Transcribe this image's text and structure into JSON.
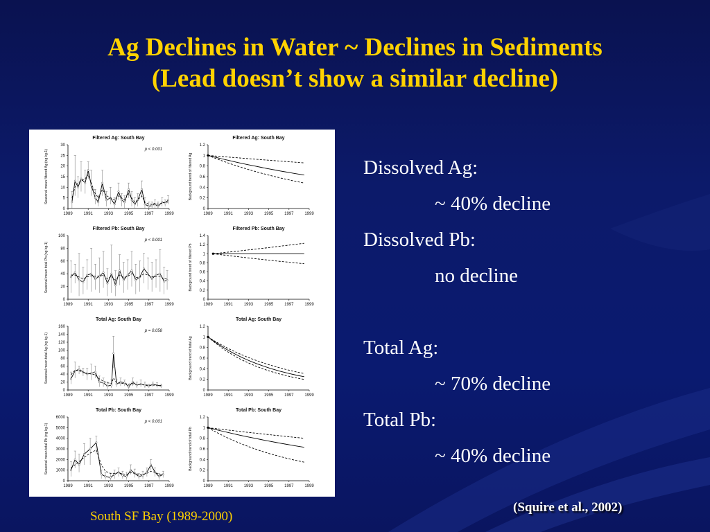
{
  "slide": {
    "title_line1": "Ag Declines in Water ~ Declines in Sediments",
    "title_line2": "(Lead doesn’t show a similar decline)",
    "caption": "South SF Bay (1989-2000)",
    "citation": "(Squire et al., 2002)"
  },
  "bullets": [
    {
      "text": "Dissolved Ag:",
      "indent": false
    },
    {
      "text": "~ 40% decline",
      "indent": true
    },
    {
      "text": "Dissolved Pb:",
      "indent": false
    },
    {
      "text": "no decline",
      "indent": true
    },
    {
      "text": "",
      "indent": false
    },
    {
      "text": "Total Ag:",
      "indent": false
    },
    {
      "text": "~ 70% decline",
      "indent": true
    },
    {
      "text": "Total Pb:",
      "indent": false
    },
    {
      "text": "~ 40% decline",
      "indent": true
    }
  ],
  "colors": {
    "title": "#ffd200",
    "background": "#0c1a6a",
    "text": "#ffffff",
    "figure_bg": "#ffffff"
  },
  "chart_data": [
    {
      "type": "line",
      "title": "Filtered Ag: South Bay",
      "annotation": "p < 0.001",
      "ylabel": "Seasonal mean filtered Ag (ng kg-1)",
      "x_ticks": [
        "1989",
        "1991",
        "1993",
        "1995",
        "1997",
        "1999"
      ],
      "xlim": [
        1989,
        1999
      ],
      "y_ticks": [
        "0",
        "5",
        "10",
        "15",
        "20",
        "25",
        "30"
      ],
      "ylim": [
        0,
        30
      ],
      "x": [
        1989.4,
        1989.7,
        1990.0,
        1990.3,
        1990.7,
        1991.0,
        1991.3,
        1991.7,
        1992.0,
        1992.4,
        1992.8,
        1993.2,
        1993.6,
        1994.0,
        1994.3,
        1994.6,
        1995.0,
        1995.3,
        1995.6,
        1995.9,
        1996.3,
        1996.6,
        1997.0,
        1997.3,
        1997.6,
        1997.9,
        1998.3,
        1998.6,
        1998.9
      ],
      "series": [
        {
          "values": [
            3,
            13,
            10,
            14,
            12,
            18,
            11,
            5,
            3,
            12,
            4,
            5,
            2,
            8,
            4,
            3,
            9,
            4,
            2,
            4,
            9,
            2,
            1,
            1.5,
            2,
            1,
            3,
            2.5,
            4
          ]
        },
        {
          "values": [
            5,
            10,
            12,
            13,
            14,
            16,
            12,
            7,
            5,
            9,
            6,
            5,
            4,
            6,
            5,
            4,
            7,
            5,
            3,
            4,
            6,
            3,
            2,
            2,
            2.5,
            2,
            2.5,
            3,
            3
          ]
        }
      ],
      "error_upper": [
        8,
        25,
        15,
        22,
        18,
        22,
        18,
        9,
        6,
        18,
        8,
        10,
        5,
        12,
        7,
        6,
        12,
        8,
        5,
        7,
        13,
        5,
        3,
        3,
        4,
        3,
        5,
        4,
        6
      ],
      "error_lower": [
        0,
        6,
        5,
        8,
        7,
        14,
        6,
        2,
        1,
        6,
        1,
        2,
        0,
        4,
        1,
        0,
        5,
        1,
        0,
        1,
        5,
        0,
        0,
        0,
        0,
        0,
        1,
        1,
        2
      ]
    },
    {
      "type": "line",
      "title": "Filtered Ag: South Bay",
      "ylabel": "Background trend of filtered Ag",
      "x_ticks": [
        "1989",
        "1991",
        "1993",
        "1995",
        "1997",
        "1999"
      ],
      "xlim": [
        1989,
        1999
      ],
      "y_ticks": [
        "0",
        "0.2",
        "0.4",
        "0.6",
        "0.8",
        "1",
        "1.2"
      ],
      "ylim": [
        0,
        1.2
      ],
      "trend": {
        "start": 1989,
        "end": 1998.5,
        "mid": 0.63,
        "upper": 0.86,
        "lower": 0.48
      }
    },
    {
      "type": "line",
      "title": "Filtered Pb: South Bay",
      "annotation": "p < 0.001",
      "ylabel": "Seasonal mean total Pb (ng kg-1)",
      "x_ticks": [
        "1989",
        "1991",
        "1993",
        "1995",
        "1997",
        "1999"
      ],
      "xlim": [
        1989,
        1999
      ],
      "y_ticks": [
        "0",
        "20",
        "40",
        "60",
        "80",
        "100"
      ],
      "ylim": [
        0,
        100
      ],
      "x": [
        1989.3,
        1989.7,
        1990.1,
        1990.5,
        1990.9,
        1991.3,
        1991.7,
        1992.1,
        1992.5,
        1992.9,
        1993.3,
        1993.7,
        1994.1,
        1994.5,
        1994.9,
        1995.3,
        1995.7,
        1996.1,
        1996.5,
        1996.9,
        1997.3,
        1997.7,
        1998.1,
        1998.5,
        1998.8
      ],
      "series": [
        {
          "values": [
            35,
            42,
            30,
            27,
            38,
            40,
            32,
            36,
            42,
            25,
            40,
            22,
            45,
            30,
            38,
            45,
            30,
            35,
            48,
            40,
            32,
            38,
            40,
            28,
            30
          ]
        },
        {
          "values": [
            38,
            38,
            35,
            32,
            35,
            37,
            36,
            36,
            38,
            32,
            36,
            30,
            38,
            34,
            36,
            40,
            34,
            35,
            40,
            38,
            35,
            36,
            36,
            32,
            32
          ]
        }
      ],
      "error_upper": [
        60,
        55,
        72,
        50,
        62,
        80,
        55,
        65,
        75,
        48,
        85,
        45,
        70,
        58,
        62,
        75,
        55,
        60,
        72,
        65,
        58,
        62,
        78,
        50,
        45
      ],
      "error_lower": [
        10,
        25,
        5,
        8,
        15,
        12,
        15,
        10,
        18,
        5,
        10,
        5,
        22,
        10,
        15,
        20,
        8,
        12,
        25,
        15,
        12,
        18,
        12,
        8,
        15
      ]
    },
    {
      "type": "line",
      "title": "Filtered Pb: South Bay",
      "ylabel": "Background trend of filtered Pb",
      "x_ticks": [
        "1989",
        "1991",
        "1993",
        "1995",
        "1997",
        "1999"
      ],
      "xlim": [
        1989,
        1999
      ],
      "y_ticks": [
        "0",
        "0.2",
        "0.4",
        "0.6",
        "0.8",
        "1",
        "1.2",
        "1.4"
      ],
      "ylim": [
        0,
        1.4
      ],
      "trend": {
        "start": 1989.5,
        "end": 1998.5,
        "mid": 1.0,
        "upper": 1.23,
        "lower": 0.78
      }
    },
    {
      "type": "line",
      "title": "Total Ag: South Bay",
      "annotation": "p = 0.058",
      "ylabel": "Seasonal mean total Ag (ng kg-1)",
      "x_ticks": [
        "1989",
        "1991",
        "1993",
        "1995",
        "1997",
        "1999"
      ],
      "xlim": [
        1989,
        1999
      ],
      "y_ticks": [
        "0",
        "20",
        "40",
        "60",
        "80",
        "100",
        "120",
        "140",
        "160"
      ],
      "ylim": [
        0,
        160
      ],
      "x": [
        1989.3,
        1989.7,
        1990.1,
        1990.5,
        1990.9,
        1991.3,
        1991.7,
        1992.1,
        1992.5,
        1992.9,
        1993.3,
        1993.5,
        1993.8,
        1994.2,
        1994.6,
        1995.0,
        1995.4,
        1995.8,
        1996.2,
        1996.6,
        1997.0,
        1997.4,
        1997.8,
        1998.2
      ],
      "series": [
        {
          "values": [
            28,
            48,
            52,
            45,
            40,
            42,
            45,
            20,
            18,
            10,
            12,
            92,
            15,
            20,
            18,
            8,
            20,
            12,
            15,
            12,
            10,
            14,
            12,
            10
          ]
        },
        {
          "values": [
            38,
            50,
            48,
            45,
            42,
            40,
            38,
            28,
            22,
            18,
            16,
            30,
            18,
            17,
            16,
            15,
            16,
            14,
            14,
            13,
            12,
            12,
            12,
            11
          ]
        }
      ],
      "error_upper": [
        45,
        70,
        60,
        55,
        55,
        65,
        60,
        35,
        30,
        20,
        25,
        135,
        25,
        30,
        25,
        15,
        30,
        20,
        25,
        20,
        15,
        20,
        18,
        15
      ],
      "error_lower": [
        15,
        30,
        40,
        35,
        25,
        25,
        30,
        8,
        8,
        2,
        5,
        55,
        8,
        10,
        10,
        2,
        10,
        5,
        8,
        5,
        5,
        8,
        6,
        5
      ]
    },
    {
      "type": "line",
      "title": "Total Ag: South Bay",
      "ylabel": "Background trend of total Ag",
      "x_ticks": [
        "1989",
        "1991",
        "1993",
        "1995",
        "1997",
        "1999"
      ],
      "xlim": [
        1989,
        1999
      ],
      "y_ticks": [
        "0",
        "0.2",
        "0.4",
        "0.6",
        "0.8",
        "1",
        "1.2"
      ],
      "ylim": [
        0,
        1.2
      ],
      "trend": {
        "start": 1989,
        "end": 1998.5,
        "mid": 0.25,
        "upper": 0.31,
        "lower": 0.2
      }
    },
    {
      "type": "line",
      "title": "Total Pb: South Bay",
      "annotation": "p < 0.001",
      "ylabel": "Seasonal mean total Pb (ng kg-1)",
      "x_ticks": [
        "1989",
        "1991",
        "1993",
        "1995",
        "1997",
        "1999"
      ],
      "xlim": [
        1989,
        1999
      ],
      "y_ticks": [
        "0",
        "1000",
        "2000",
        "3000",
        "4000",
        "5000",
        "6000"
      ],
      "ylim": [
        0,
        6000
      ],
      "x": [
        1989.3,
        1989.7,
        1990.1,
        1990.6,
        1991.2,
        1991.8,
        1992.3,
        1992.7,
        1993.2,
        1993.6,
        1994.0,
        1994.4,
        1994.8,
        1995.2,
        1995.6,
        1996.0,
        1996.4,
        1996.8,
        1997.2,
        1997.6,
        1998.0,
        1998.4
      ],
      "series": [
        {
          "values": [
            1000,
            2000,
            1500,
            2500,
            3000,
            3600,
            600,
            400,
            300,
            600,
            800,
            500,
            400,
            1000,
            700,
            400,
            500,
            800,
            1500,
            800,
            400,
            600
          ]
        },
        {
          "values": [
            1200,
            1500,
            1800,
            2200,
            2600,
            2900,
            1500,
            900,
            700,
            700,
            750,
            650,
            600,
            750,
            700,
            600,
            600,
            700,
            900,
            800,
            600,
            550
          ]
        }
      ],
      "error_upper": [
        1800,
        2800,
        2500,
        3500,
        4000,
        4200,
        1000,
        800,
        700,
        1000,
        1200,
        900,
        800,
        1500,
        1100,
        700,
        900,
        1200,
        2000,
        1200,
        700,
        900
      ],
      "error_lower": [
        400,
        1200,
        800,
        1500,
        1500,
        2500,
        200,
        100,
        50,
        200,
        400,
        200,
        100,
        600,
        300,
        100,
        200,
        400,
        1000,
        400,
        100,
        300
      ]
    },
    {
      "type": "line",
      "title": "Total Pb: South Bay",
      "ylabel": "Background trend of total Pb",
      "x_ticks": [
        "1989",
        "1991",
        "1993",
        "1995",
        "1997",
        "1999"
      ],
      "xlim": [
        1989,
        1999
      ],
      "y_ticks": [
        "0",
        "0.2",
        "0.4",
        "0.6",
        "0.8",
        "1",
        "1.2"
      ],
      "ylim": [
        0,
        1.2
      ],
      "trend": {
        "start": 1989,
        "end": 1998.5,
        "mid": 0.63,
        "upper": 0.8,
        "lower": 0.35
      }
    }
  ]
}
